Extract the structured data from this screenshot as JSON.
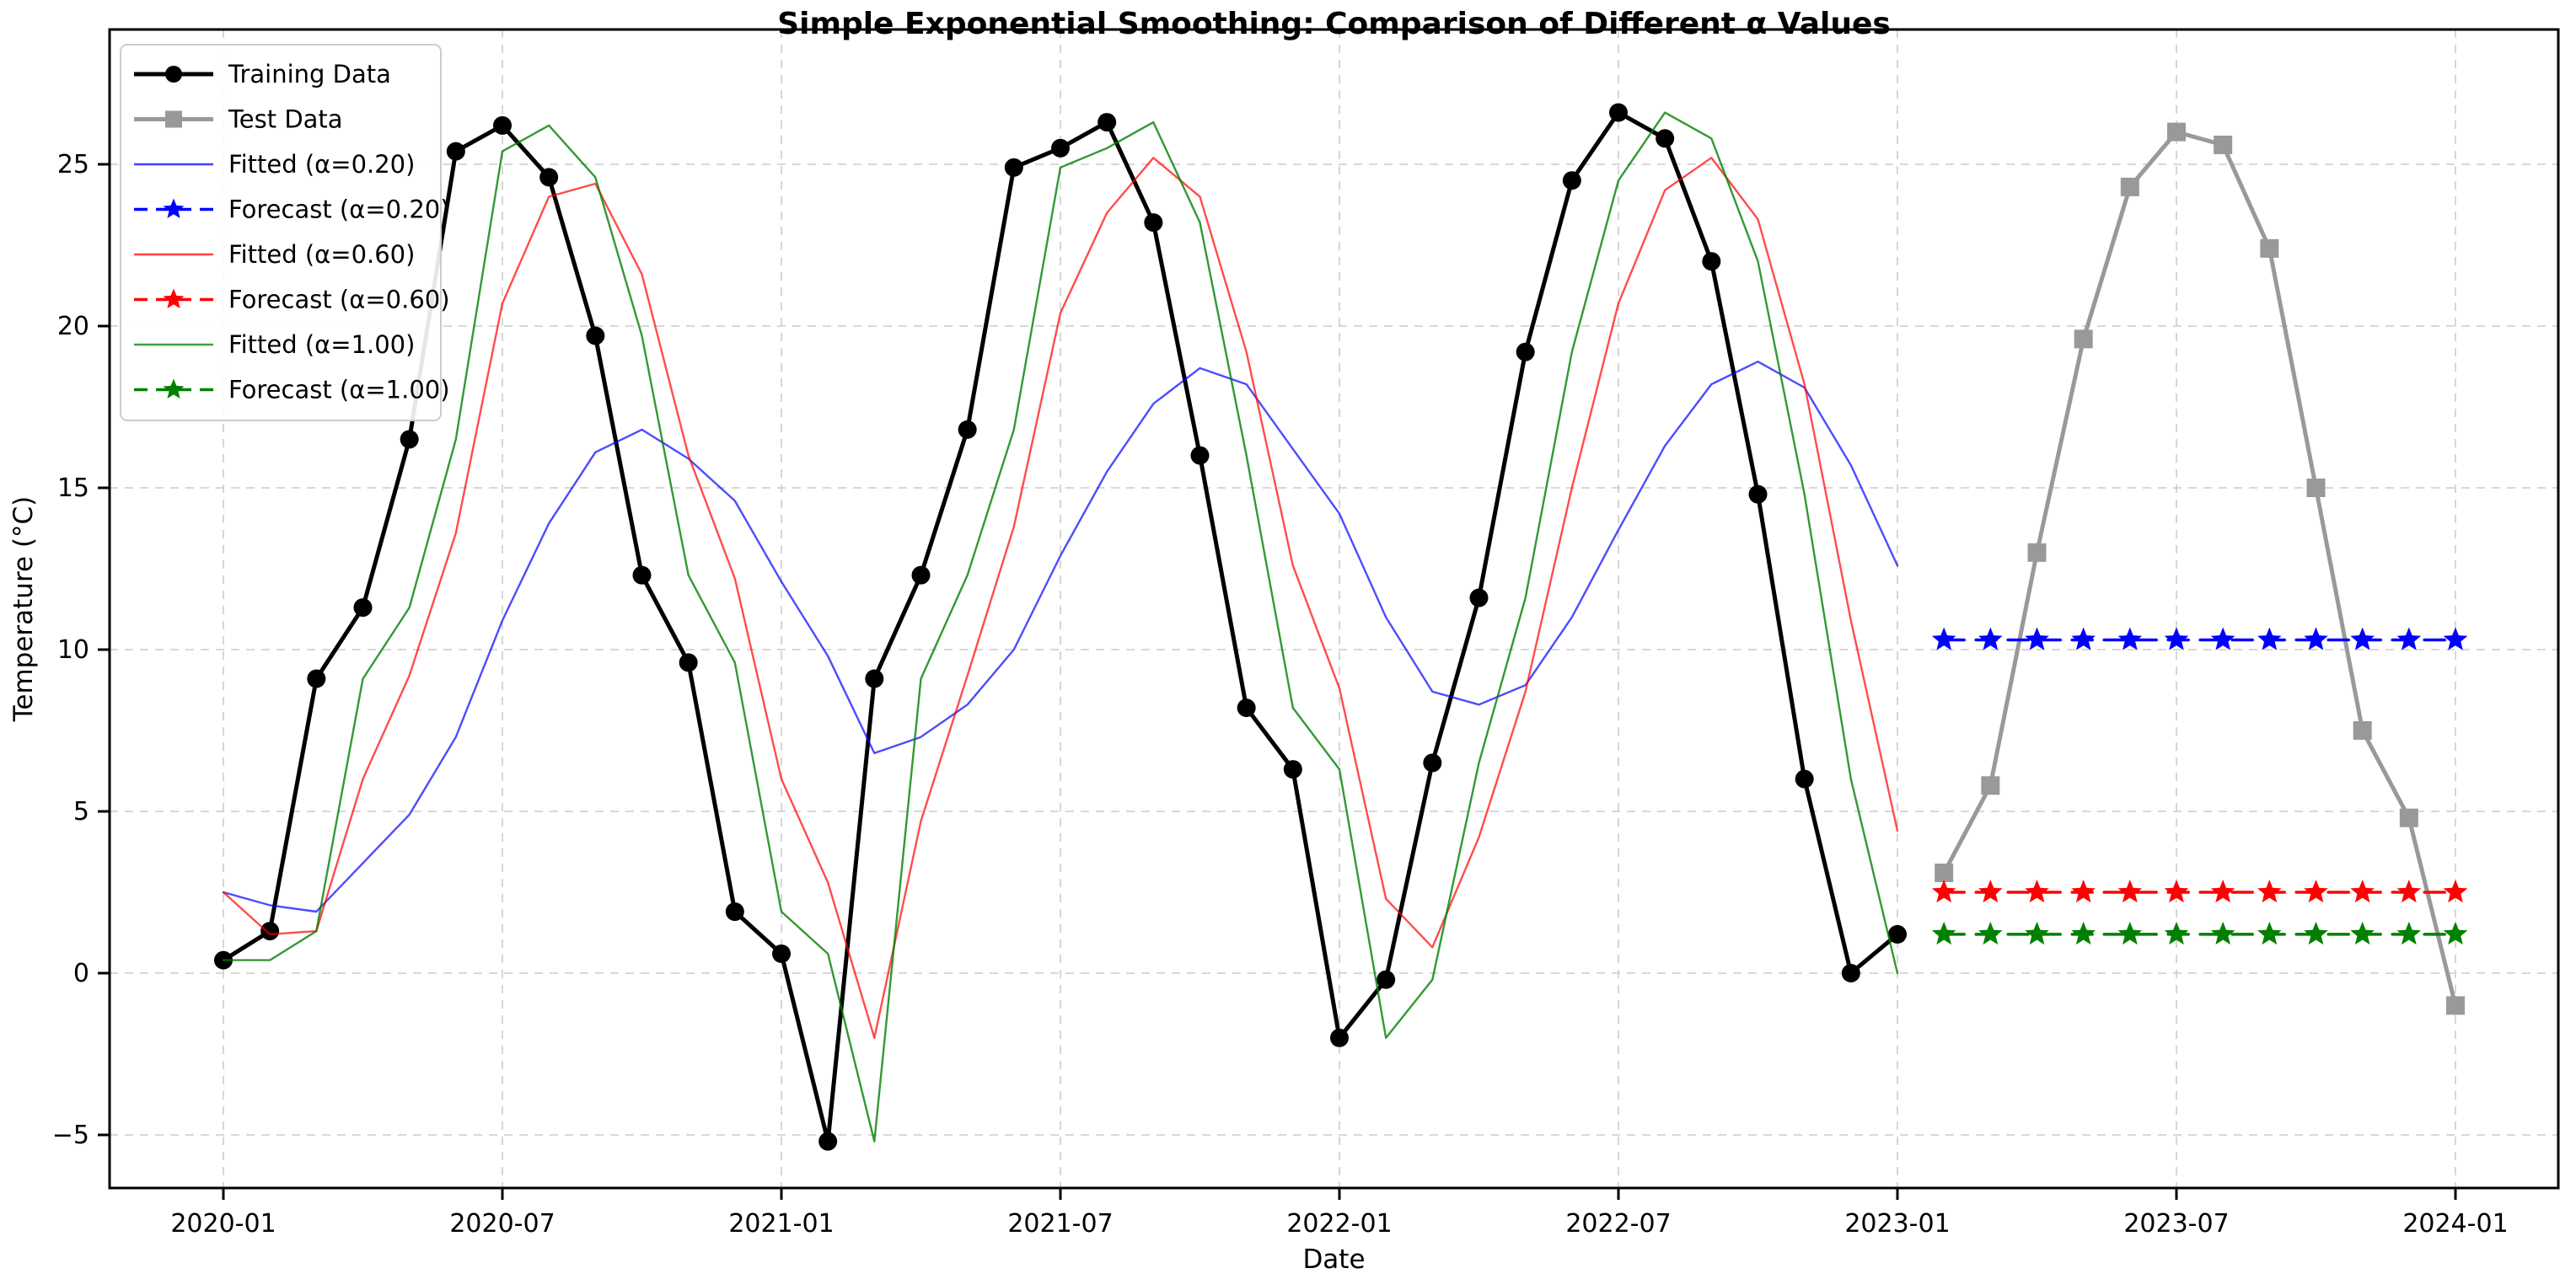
{
  "chart_data": {
    "type": "line",
    "title": "Simple Exponential Smoothing: Comparison of Different α Values",
    "xlabel": "Date",
    "ylabel": "Temperature (°C)",
    "x_tick_labels": [
      "2020-01",
      "2020-07",
      "2021-01",
      "2021-07",
      "2022-01",
      "2022-07",
      "2023-01",
      "2023-07",
      "2024-01"
    ],
    "y_ticks": [
      -5,
      0,
      5,
      10,
      15,
      20,
      25
    ],
    "y_tick_labels": [
      "−5",
      "0",
      "5",
      "10",
      "15",
      "20",
      "25"
    ],
    "ylim": [
      -6.6,
      29.2
    ],
    "grid": true,
    "legend_position": "upper left",
    "x_months_training": [
      "2020-01",
      "2020-02",
      "2020-03",
      "2020-04",
      "2020-05",
      "2020-06",
      "2020-07",
      "2020-08",
      "2020-09",
      "2020-10",
      "2020-11",
      "2020-12",
      "2021-01",
      "2021-02",
      "2021-03",
      "2021-04",
      "2021-05",
      "2021-06",
      "2021-07",
      "2021-08",
      "2021-09",
      "2021-10",
      "2021-11",
      "2021-12",
      "2022-01",
      "2022-02",
      "2022-03",
      "2022-04",
      "2022-05",
      "2022-06",
      "2022-07",
      "2022-08",
      "2022-09",
      "2022-10",
      "2022-11",
      "2022-12",
      "2023-01"
    ],
    "x_months_test": [
      "2023-02",
      "2023-03",
      "2023-04",
      "2023-05",
      "2023-06",
      "2023-07",
      "2023-08",
      "2023-09",
      "2023-10",
      "2023-11",
      "2023-12",
      "2024-01"
    ],
    "series": [
      {
        "name": "Training Data",
        "x_ref": "training",
        "color": "#000000",
        "opacity": 1,
        "line": "solid",
        "width": 5,
        "marker": "circle",
        "values": [
          0.4,
          1.3,
          9.1,
          11.3,
          16.5,
          25.4,
          26.2,
          24.6,
          19.7,
          12.3,
          9.6,
          1.9,
          0.6,
          -5.2,
          9.1,
          12.3,
          16.8,
          24.9,
          25.5,
          26.3,
          23.2,
          16.0,
          8.2,
          6.3,
          -2.0,
          -0.2,
          6.5,
          11.6,
          19.2,
          24.5,
          26.6,
          25.8,
          22.0,
          14.8,
          6.0,
          0.0,
          1.2
        ]
      },
      {
        "name": "Test Data",
        "x_ref": "test",
        "color": "#999999",
        "opacity": 1,
        "line": "solid",
        "width": 5,
        "marker": "square",
        "values": [
          3.1,
          5.8,
          13.0,
          19.6,
          24.3,
          26.0,
          25.6,
          22.4,
          15.0,
          7.5,
          4.8,
          -1.0
        ]
      },
      {
        "name": "Fitted (α=0.20)",
        "x_ref": "training",
        "color": "#0000ff",
        "opacity": 0.7,
        "line": "solid",
        "width": 2.4,
        "marker": "none",
        "values": [
          2.5,
          2.1,
          1.9,
          3.4,
          4.9,
          7.3,
          10.9,
          13.9,
          16.1,
          16.8,
          15.9,
          14.6,
          12.1,
          9.8,
          6.8,
          7.3,
          8.3,
          10.0,
          12.9,
          15.5,
          17.6,
          18.7,
          18.2,
          16.2,
          14.2,
          11.0,
          8.7,
          8.3,
          8.9,
          11.0,
          13.7,
          16.3,
          18.2,
          18.9,
          18.1,
          15.7,
          12.6
        ]
      },
      {
        "name": "Forecast (α=0.20)",
        "x_ref": "test",
        "color": "#0000ff",
        "opacity": 1,
        "line": "dashed",
        "width": 3.5,
        "marker": "star",
        "values": [
          10.3,
          10.3,
          10.3,
          10.3,
          10.3,
          10.3,
          10.3,
          10.3,
          10.3,
          10.3,
          10.3,
          10.3
        ]
      },
      {
        "name": "Fitted (α=0.60)",
        "x_ref": "training",
        "color": "#ff0000",
        "opacity": 0.7,
        "line": "solid",
        "width": 2.4,
        "marker": "none",
        "values": [
          2.5,
          1.2,
          1.3,
          6.0,
          9.2,
          13.6,
          20.7,
          24.0,
          24.4,
          21.6,
          16.0,
          12.2,
          6.0,
          2.8,
          -2.0,
          4.7,
          9.2,
          13.8,
          20.4,
          23.5,
          25.2,
          24.0,
          19.2,
          12.6,
          8.8,
          2.3,
          0.8,
          4.2,
          8.7,
          15.0,
          20.7,
          24.2,
          25.2,
          23.3,
          18.2,
          10.9,
          4.4
        ]
      },
      {
        "name": "Forecast (α=0.60)",
        "x_ref": "test",
        "color": "#ff0000",
        "opacity": 1,
        "line": "dashed",
        "width": 3.5,
        "marker": "star",
        "values": [
          2.5,
          2.5,
          2.5,
          2.5,
          2.5,
          2.5,
          2.5,
          2.5,
          2.5,
          2.5,
          2.5,
          2.5
        ]
      },
      {
        "name": "Fitted (α=1.00)",
        "x_ref": "training",
        "color": "#008000",
        "opacity": 0.8,
        "line": "solid",
        "width": 2.4,
        "marker": "none",
        "values": [
          0.4,
          0.4,
          1.3,
          9.1,
          11.3,
          16.5,
          25.4,
          26.2,
          24.6,
          19.7,
          12.3,
          9.6,
          1.9,
          0.6,
          -5.2,
          9.1,
          12.3,
          16.8,
          24.9,
          25.5,
          26.3,
          23.2,
          16.0,
          8.2,
          6.3,
          -2.0,
          -0.2,
          6.5,
          11.6,
          19.2,
          24.5,
          26.6,
          25.8,
          22.0,
          14.8,
          6.0,
          0.0
        ]
      },
      {
        "name": "Forecast (α=1.00)",
        "x_ref": "test",
        "color": "#008000",
        "opacity": 1,
        "line": "dashed",
        "width": 3.5,
        "marker": "star",
        "values": [
          1.2,
          1.2,
          1.2,
          1.2,
          1.2,
          1.2,
          1.2,
          1.2,
          1.2,
          1.2,
          1.2,
          1.2
        ]
      }
    ]
  },
  "legend": {
    "items": [
      {
        "label": "Training Data",
        "color": "#000000",
        "line": "solid",
        "marker": "circle",
        "thick": true
      },
      {
        "label": "Test Data",
        "color": "#999999",
        "line": "solid",
        "marker": "square",
        "thick": true
      },
      {
        "label": "Fitted (α=0.20)",
        "color": "#0000ff",
        "line": "solid",
        "marker": "none",
        "thick": false
      },
      {
        "label": "Forecast (α=0.20)",
        "color": "#0000ff",
        "line": "dashed",
        "marker": "star",
        "thick": false
      },
      {
        "label": "Fitted (α=0.60)",
        "color": "#ff0000",
        "line": "solid",
        "marker": "none",
        "thick": false
      },
      {
        "label": "Forecast (α=0.60)",
        "color": "#ff0000",
        "line": "dashed",
        "marker": "star",
        "thick": false
      },
      {
        "label": "Fitted (α=1.00)",
        "color": "#008000",
        "line": "solid",
        "marker": "none",
        "thick": false
      },
      {
        "label": "Forecast (α=1.00)",
        "color": "#008000",
        "line": "dashed",
        "marker": "star",
        "thick": false
      }
    ]
  },
  "colors": {
    "grid": "#cccccc",
    "spine": "#000000",
    "background": "#ffffff",
    "training": "#000000",
    "test": "#999999",
    "alpha_020": "#0000ff",
    "alpha_060": "#ff0000",
    "alpha_100": "#008000"
  }
}
